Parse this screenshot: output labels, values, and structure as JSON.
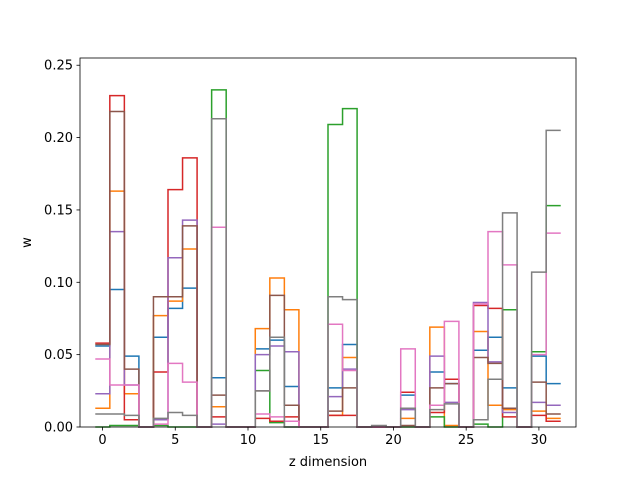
{
  "chart_data": {
    "type": "line",
    "step": "mid",
    "title": "",
    "xlabel": "z dimension",
    "ylabel": "w",
    "xlim": [
      -1.55,
      32.55
    ],
    "ylim": [
      0,
      0.255
    ],
    "x_ticks": [
      0,
      5,
      10,
      15,
      20,
      25,
      30
    ],
    "x_tick_labels": [
      "0",
      "5",
      "10",
      "15",
      "20",
      "25",
      "30"
    ],
    "y_ticks": [
      0.0,
      0.05,
      0.1,
      0.15,
      0.2,
      0.25
    ],
    "y_tick_labels": [
      "0.00",
      "0.05",
      "0.10",
      "0.15",
      "0.20",
      "0.25"
    ],
    "grid": false,
    "legend": "none",
    "x": [
      0,
      1,
      2,
      3,
      4,
      5,
      6,
      7,
      8,
      9,
      10,
      11,
      12,
      13,
      14,
      15,
      16,
      17,
      18,
      19,
      20,
      21,
      22,
      23,
      24,
      25,
      26,
      27,
      28,
      29,
      30,
      31
    ],
    "series": [
      {
        "color": "#1f77b4",
        "values": [
          0.056,
          0.095,
          0.049,
          0.0,
          0.062,
          0.082,
          0.096,
          0.0,
          0.034,
          0.0,
          0.0,
          0.054,
          0.06,
          0.028,
          0.0,
          0.0,
          0.027,
          0.057,
          0.0,
          0.0,
          0.0,
          0.022,
          0.0,
          0.038,
          0.03,
          0.0,
          0.053,
          0.062,
          0.027,
          0.0,
          0.049,
          0.03
        ]
      },
      {
        "color": "#ff7f0e",
        "values": [
          0.013,
          0.163,
          0.023,
          0.0,
          0.077,
          0.087,
          0.123,
          0.0,
          0.014,
          0.0,
          0.0,
          0.068,
          0.103,
          0.081,
          0.0,
          0.0,
          0.008,
          0.048,
          0.0,
          0.0,
          0.0,
          0.006,
          0.0,
          0.069,
          0.001,
          0.0,
          0.066,
          0.015,
          0.012,
          0.0,
          0.011,
          0.006
        ]
      },
      {
        "color": "#2ca02c",
        "values": [
          0.0,
          0.001,
          0.001,
          0.0,
          0.001,
          0.0,
          0.0,
          0.0,
          0.233,
          0.0,
          0.0,
          0.039,
          0.003,
          0.0,
          0.0,
          0.0,
          0.209,
          0.22,
          0.0,
          0.0,
          0.0,
          0.0,
          0.0,
          0.007,
          0.0,
          0.0,
          0.002,
          0.0,
          0.081,
          0.0,
          0.052,
          0.153
        ]
      },
      {
        "color": "#d62728",
        "values": [
          0.058,
          0.229,
          0.005,
          0.0,
          0.038,
          0.164,
          0.186,
          0.0,
          0.007,
          0.0,
          0.0,
          0.006,
          0.004,
          0.007,
          0.0,
          0.0,
          0.008,
          0.008,
          0.0,
          0.0,
          0.0,
          0.024,
          0.0,
          0.01,
          0.033,
          0.0,
          0.084,
          0.082,
          0.007,
          0.0,
          0.008,
          0.004
        ]
      },
      {
        "color": "#9467bd",
        "values": [
          0.023,
          0.135,
          0.029,
          0.0,
          0.005,
          0.117,
          0.143,
          0.0,
          0.002,
          0.0,
          0.0,
          0.05,
          0.056,
          0.052,
          0.0,
          0.0,
          0.021,
          0.04,
          0.0,
          0.0,
          0.0,
          0.012,
          0.0,
          0.049,
          0.017,
          0.0,
          0.086,
          0.045,
          0.01,
          0.0,
          0.017,
          0.015
        ]
      },
      {
        "color": "#8c564b",
        "values": [
          0.057,
          0.218,
          0.04,
          0.0,
          0.09,
          0.09,
          0.139,
          0.0,
          0.022,
          0.0,
          0.0,
          0.025,
          0.091,
          0.015,
          0.0,
          0.0,
          0.011,
          0.027,
          0.0,
          0.0,
          0.0,
          0.001,
          0.0,
          0.027,
          0.03,
          0.0,
          0.048,
          0.044,
          0.013,
          0.0,
          0.031,
          0.009
        ]
      },
      {
        "color": "#e377c2",
        "values": [
          0.047,
          0.029,
          0.029,
          0.0,
          0.002,
          0.044,
          0.031,
          0.0,
          0.138,
          0.0,
          0.0,
          0.009,
          0.007,
          0.004,
          0.0,
          0.0,
          0.071,
          0.039,
          0.0,
          0.0,
          0.0,
          0.054,
          0.0,
          0.015,
          0.073,
          0.0,
          0.085,
          0.135,
          0.112,
          0.0,
          0.05,
          0.134
        ]
      },
      {
        "color": "#7f7f7f",
        "values": [
          0.009,
          0.009,
          0.008,
          0.0,
          0.006,
          0.01,
          0.008,
          0.0,
          0.213,
          0.0,
          0.0,
          0.025,
          0.062,
          0.0,
          0.0,
          0.0,
          0.09,
          0.088,
          0.0,
          0.001,
          0.0,
          0.013,
          0.0,
          0.012,
          0.016,
          0.0,
          0.005,
          0.033,
          0.148,
          0.0,
          0.107,
          0.205
        ]
      }
    ]
  }
}
